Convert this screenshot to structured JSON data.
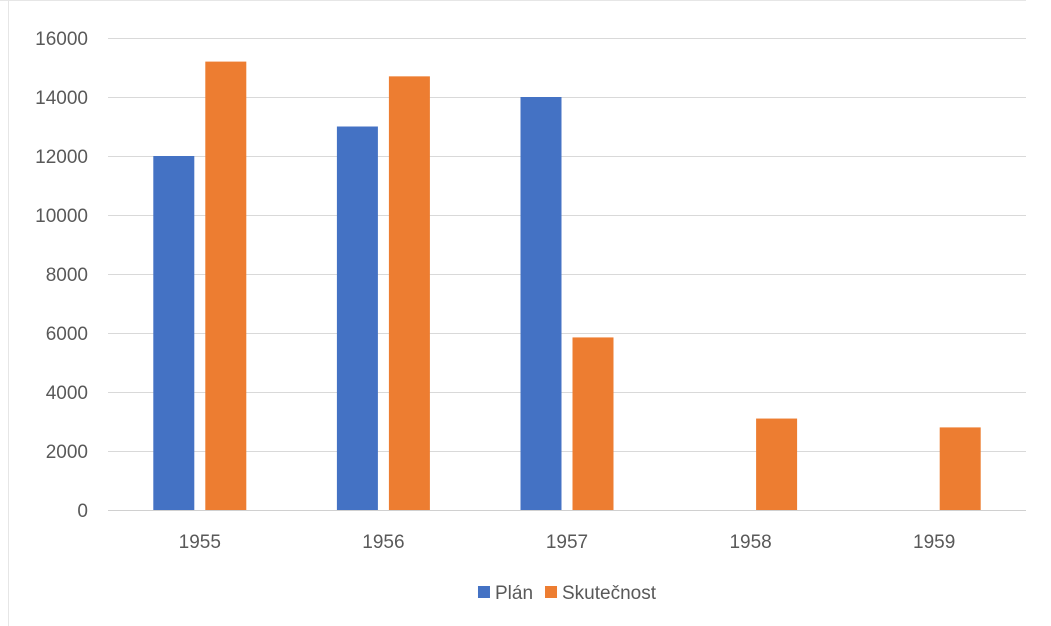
{
  "chart_data": {
    "type": "bar",
    "categories": [
      "1955",
      "1956",
      "1957",
      "1958",
      "1959"
    ],
    "series": [
      {
        "name": "Plán",
        "color": "#4472C4",
        "values": [
          12000,
          13000,
          14000,
          null,
          null
        ]
      },
      {
        "name": "Skutečnost",
        "color": "#ED7D31",
        "values": [
          15200,
          14700,
          5850,
          3100,
          2800
        ]
      }
    ],
    "ylim": [
      0,
      16000
    ],
    "yticks": [
      0,
      2000,
      4000,
      6000,
      8000,
      10000,
      12000,
      14000,
      16000
    ],
    "grid": true,
    "legend_position": "bottom",
    "title": "",
    "xlabel": "",
    "ylabel": ""
  }
}
